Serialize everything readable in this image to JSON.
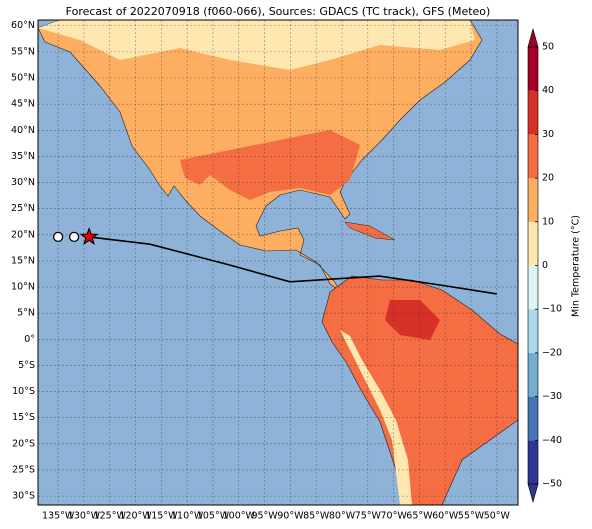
{
  "map": {
    "title": "Forecast of 2022070918 (f060-066), Sources: GDACS (TC track), GFS (Meteo)",
    "lon_range": [
      -138.9,
      -45.9
    ],
    "lat_range": [
      61.1,
      -31.7
    ],
    "lat_ticks": [
      {
        "value": 60,
        "label": "60°N"
      },
      {
        "value": 55,
        "label": "55°N"
      },
      {
        "value": 50,
        "label": "50°N"
      },
      {
        "value": 45,
        "label": "45°N"
      },
      {
        "value": 40,
        "label": "40°N"
      },
      {
        "value": 35,
        "label": "35°N"
      },
      {
        "value": 30,
        "label": "30°N"
      },
      {
        "value": 25,
        "label": "25°N"
      },
      {
        "value": 20,
        "label": "20°N"
      },
      {
        "value": 15,
        "label": "15°N"
      },
      {
        "value": 10,
        "label": "10°N"
      },
      {
        "value": 5,
        "label": "5°N"
      },
      {
        "value": 0,
        "label": "0°"
      },
      {
        "value": -5,
        "label": "5°S"
      },
      {
        "value": -10,
        "label": "10°S"
      },
      {
        "value": -15,
        "label": "15°S"
      },
      {
        "value": -20,
        "label": "20°S"
      },
      {
        "value": -25,
        "label": "25°S"
      },
      {
        "value": -30,
        "label": "30°S"
      }
    ],
    "lon_ticks": [
      {
        "value": -135,
        "label": "135°W"
      },
      {
        "value": -130,
        "label": "130°W"
      },
      {
        "value": -125,
        "label": "125°W"
      },
      {
        "value": -120,
        "label": "120°W"
      },
      {
        "value": -115,
        "label": "115°W"
      },
      {
        "value": -110,
        "label": "110°W"
      },
      {
        "value": -105,
        "label": "105°W"
      },
      {
        "value": -100,
        "label": "100°W"
      },
      {
        "value": -95,
        "label": "95°W"
      },
      {
        "value": -90,
        "label": "90°W"
      },
      {
        "value": -85,
        "label": "85°W"
      },
      {
        "value": -80,
        "label": "80°W"
      },
      {
        "value": -75,
        "label": "75°W"
      },
      {
        "value": -70,
        "label": "70°W"
      },
      {
        "value": -65,
        "label": "65°W"
      },
      {
        "value": -60,
        "label": "60°W"
      },
      {
        "value": -55,
        "label": "55°W"
      },
      {
        "value": -50,
        "label": "50°W"
      }
    ],
    "track": {
      "lon": [
        -129.0,
        -117.2,
        -101.7,
        -90.1,
        -72.7,
        -61.0,
        -50.0
      ],
      "lat": [
        19.6,
        18.2,
        14.2,
        11.0,
        12.1,
        10.4,
        8.7
      ]
    },
    "past_positions": {
      "lon": [
        -135.0,
        -131.9
      ],
      "lat": [
        19.6,
        19.6
      ]
    },
    "current_position": {
      "lon": -129.0,
      "lat": 19.6
    },
    "colorbar": {
      "label": "Min Temperature (°C)",
      "range": [
        -50,
        50
      ],
      "colors": [
        "#313695",
        "#4575b4",
        "#74add1",
        "#abd9e9",
        "#e0f3f8",
        "#fee8b0",
        "#fdae61",
        "#f46d43",
        "#d73027",
        "#a50026"
      ],
      "ticks": [
        50,
        40,
        30,
        20,
        10,
        0,
        {
          "value": -10,
          "label": "−10"
        },
        {
          "value": -20,
          "label": "−20"
        },
        {
          "value": -30,
          "label": "−30"
        },
        {
          "value": -40,
          "label": "−40"
        },
        {
          "value": -50,
          "label": "−50"
        }
      ]
    }
  }
}
